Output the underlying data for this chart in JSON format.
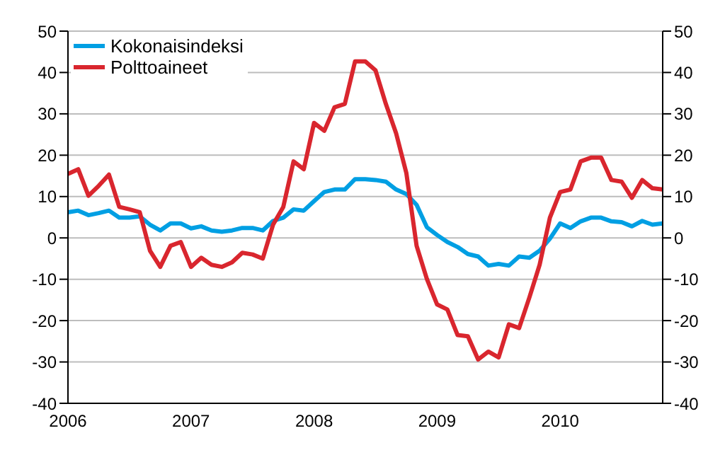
{
  "chart_data": {
    "type": "line",
    "categories": [
      "2006",
      null,
      null,
      null,
      null,
      null,
      null,
      null,
      null,
      null,
      null,
      null,
      "2007",
      null,
      null,
      null,
      null,
      null,
      null,
      null,
      null,
      null,
      null,
      null,
      "2008",
      null,
      null,
      null,
      null,
      null,
      null,
      null,
      null,
      null,
      null,
      null,
      "2009",
      null,
      null,
      null,
      null,
      null,
      null,
      null,
      null,
      null,
      null,
      null,
      "2010",
      null,
      null,
      null,
      null,
      null,
      null,
      null,
      null,
      null,
      null
    ],
    "series": [
      {
        "name": "Kokonaisindeksi",
        "color": "#009fe3",
        "values": [
          6.2,
          6.6,
          5.5,
          6,
          6.6,
          4.9,
          4.9,
          5.2,
          3.2,
          1.8,
          3.5,
          3.5,
          2.3,
          2.8,
          1.8,
          1.5,
          1.8,
          2.4,
          2.4,
          1.8,
          4.1,
          4.9,
          6.9,
          6.6,
          8.9,
          11.1,
          11.7,
          11.7,
          14.2,
          14.2,
          14,
          13.6,
          11.7,
          10.6,
          8,
          2.6,
          0.7,
          -1,
          -2.2,
          -3.9,
          -4.5,
          -6.7,
          -6.3,
          -6.7,
          -4.5,
          -4.8,
          -3.1,
          -0.2,
          3.5,
          2.4,
          4,
          4.9,
          4.9,
          4,
          3.8,
          2.8,
          4.1,
          3.2,
          3.5
        ]
      },
      {
        "name": "Polttoaineet",
        "color": "#d9262e",
        "values": [
          15.5,
          16.6,
          10.2,
          12.6,
          15.3,
          7.5,
          6.9,
          6.2,
          -3.1,
          -7,
          -1.9,
          -1,
          -7,
          -4.8,
          -6.5,
          -7,
          -5.9,
          -3.6,
          -4,
          -5,
          3.2,
          7.5,
          18.5,
          16.6,
          27.8,
          25.9,
          31.6,
          32.4,
          42.7,
          42.7,
          40.5,
          32.4,
          25.3,
          15.7,
          -1.9,
          -9.9,
          -16.1,
          -17.3,
          -23.5,
          -23.8,
          -29.4,
          -27.5,
          -28.9,
          -20.9,
          -21.8,
          -14.4,
          -6.5,
          4.9,
          11.1,
          11.7,
          18.5,
          19.4,
          19.4,
          14,
          13.6,
          9.7,
          14,
          12,
          11.7
        ]
      }
    ],
    "ylim": [
      -40,
      50
    ],
    "yticks": [
      -40,
      -30,
      -20,
      -10,
      0,
      10,
      20,
      30,
      40,
      50
    ],
    "y2lim": [
      -40,
      50
    ],
    "y2ticks": [
      -40,
      -30,
      -20,
      -10,
      0,
      10,
      20,
      30,
      40,
      50
    ],
    "grid": "y",
    "legend": "top left",
    "marker": "none",
    "line_style": "solid"
  }
}
